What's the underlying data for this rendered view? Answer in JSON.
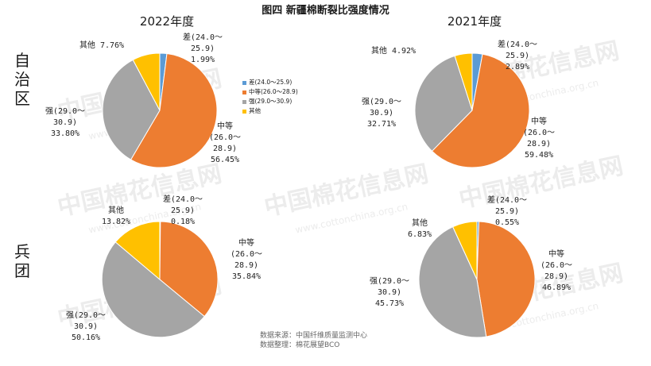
{
  "title": "图四 新疆棉断裂比强度情况",
  "column_titles": [
    "2022年度",
    "2021年度"
  ],
  "row_titles": [
    "自治区",
    "兵团"
  ],
  "legend": [
    {
      "label": "差(24.0～25.9)",
      "color": "#5b9bd5"
    },
    {
      "label": "中等(26.0～28.9)",
      "color": "#ed7d31"
    },
    {
      "label": "强(29.0～30.9)",
      "color": "#a5a5a5"
    },
    {
      "label": "其他",
      "color": "#ffc000"
    }
  ],
  "watermark": {
    "text": "中国棉花信息网",
    "url": "www.cottonchina.org.cn"
  },
  "source": {
    "line1": "数据来源：中国纤维质量监测中心",
    "line2": "数据整理：棉花展望BCO"
  },
  "chart_data": [
    {
      "type": "pie",
      "row": "自治区",
      "year": "2022年度",
      "categories": [
        "差(24.0～25.9)",
        "中等(26.0～28.9)",
        "强(29.0～30.9)",
        "其他"
      ],
      "values": [
        1.99,
        56.45,
        33.8,
        7.76
      ],
      "labels": [
        [
          "差(24.0～",
          "25.9)",
          "1.99%"
        ],
        [
          "中等",
          "(26.0～",
          "28.9)",
          "56.45%"
        ],
        [
          "强(29.0～",
          "30.9)",
          "33.80%"
        ],
        [
          "其他 7.76%"
        ]
      ]
    },
    {
      "type": "pie",
      "row": "自治区",
      "year": "2021年度",
      "categories": [
        "差(24.0～25.9)",
        "中等(26.0～28.9)",
        "强(29.0～30.9)",
        "其他"
      ],
      "values": [
        2.89,
        59.48,
        32.71,
        4.92
      ],
      "labels": [
        [
          "差(24.0～",
          "25.9)",
          "2.89%"
        ],
        [
          "中等",
          "(26.0～",
          "28.9)",
          "59.48%"
        ],
        [
          "强(29.0～",
          "30.9)",
          "32.71%"
        ],
        [
          "其他 4.92%"
        ]
      ]
    },
    {
      "type": "pie",
      "row": "兵团",
      "year": "2022年度",
      "categories": [
        "差(24.0～25.9)",
        "中等(26.0～28.9)",
        "强(29.0～30.9)",
        "其他"
      ],
      "values": [
        0.18,
        35.84,
        50.16,
        13.82
      ],
      "labels": [
        [
          "差(24.0～",
          "25.9)",
          "0.18%"
        ],
        [
          "中等",
          "(26.0～",
          "28.9)",
          "35.84%"
        ],
        [
          "强(29.0～",
          "30.9)",
          "50.16%"
        ],
        [
          "其他",
          "13.82%"
        ]
      ]
    },
    {
      "type": "pie",
      "row": "兵团",
      "year": "2021年度",
      "categories": [
        "差(24.0～25.9)",
        "中等(26.0～28.9)",
        "强(29.0～30.9)",
        "其他"
      ],
      "values": [
        0.55,
        46.89,
        45.73,
        6.83
      ],
      "labels": [
        [
          "差(24.0～",
          "25.9)",
          "0.55%"
        ],
        [
          "中等",
          "(26.0～",
          "28.9)",
          "46.89%"
        ],
        [
          "强(29.0～",
          "30.9)",
          "45.73%"
        ],
        [
          "其他",
          "6.83%"
        ]
      ]
    }
  ]
}
